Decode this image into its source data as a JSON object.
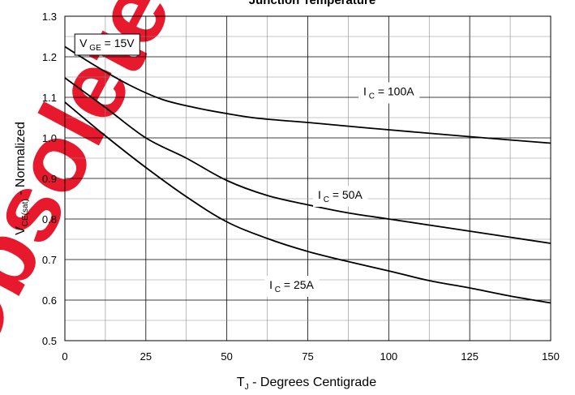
{
  "chart_data": {
    "type": "line",
    "title": "Junction Temperature",
    "xlabel": {
      "main": "T",
      "sub": "J",
      "rest": " - Degrees Centigrade"
    },
    "ylabel": {
      "main": "V",
      "sub": "CE(sat)",
      "rest": " - Normalized"
    },
    "xlim": [
      0,
      150
    ],
    "ylim": [
      0.5,
      1.3
    ],
    "x_ticks": [
      0,
      25,
      50,
      75,
      100,
      125,
      150
    ],
    "y_ticks": [
      0.5,
      0.6,
      0.7,
      0.8,
      0.9,
      1.0,
      1.1,
      1.2,
      1.3
    ],
    "x_tick_labels": [
      "0",
      "25",
      "50",
      "75",
      "100",
      "125",
      "150"
    ],
    "y_tick_labels": [
      "0.5",
      "0.6",
      "0.7",
      "0.8",
      "0.9",
      "1.0",
      "1.1",
      "1.2",
      "1.3"
    ],
    "grid": true,
    "condition_label": {
      "main": "V",
      "sub": "GE",
      "rest": " = 15V"
    },
    "series": [
      {
        "name": "I C = 100A",
        "label_parts": {
          "main": "I",
          "sub": "C",
          "rest": " = 100A"
        },
        "color": "#000000",
        "x": [
          0,
          10,
          20,
          30,
          40,
          50,
          60,
          75,
          90,
          100,
          125,
          150
        ],
        "y": [
          1.225,
          1.175,
          1.13,
          1.095,
          1.075,
          1.06,
          1.048,
          1.038,
          1.027,
          1.02,
          1.003,
          0.987
        ]
      },
      {
        "name": "I C = 50A",
        "label_parts": {
          "main": "I",
          "sub": "C",
          "rest": " = 50A"
        },
        "color": "#000000",
        "x": [
          0,
          12.5,
          25,
          37.5,
          50,
          62.5,
          75,
          87.5,
          100,
          112.5,
          125,
          137.5,
          150
        ],
        "y": [
          1.148,
          1.075,
          1.0,
          0.95,
          0.895,
          0.858,
          0.835,
          0.815,
          0.8,
          0.785,
          0.77,
          0.755,
          0.74
        ]
      },
      {
        "name": "I C = 25A",
        "label_parts": {
          "main": "I",
          "sub": "C",
          "rest": " = 25A"
        },
        "color": "#000000",
        "x": [
          0,
          12.5,
          25,
          37.5,
          50,
          62.5,
          75,
          87.5,
          100,
          112.5,
          125,
          137.5,
          150
        ],
        "y": [
          1.088,
          1.005,
          0.927,
          0.855,
          0.793,
          0.752,
          0.72,
          0.695,
          0.672,
          0.648,
          0.63,
          0.61,
          0.593
        ]
      }
    ],
    "watermark_text": "Obsolete",
    "watermark_color": "#e8192c"
  }
}
